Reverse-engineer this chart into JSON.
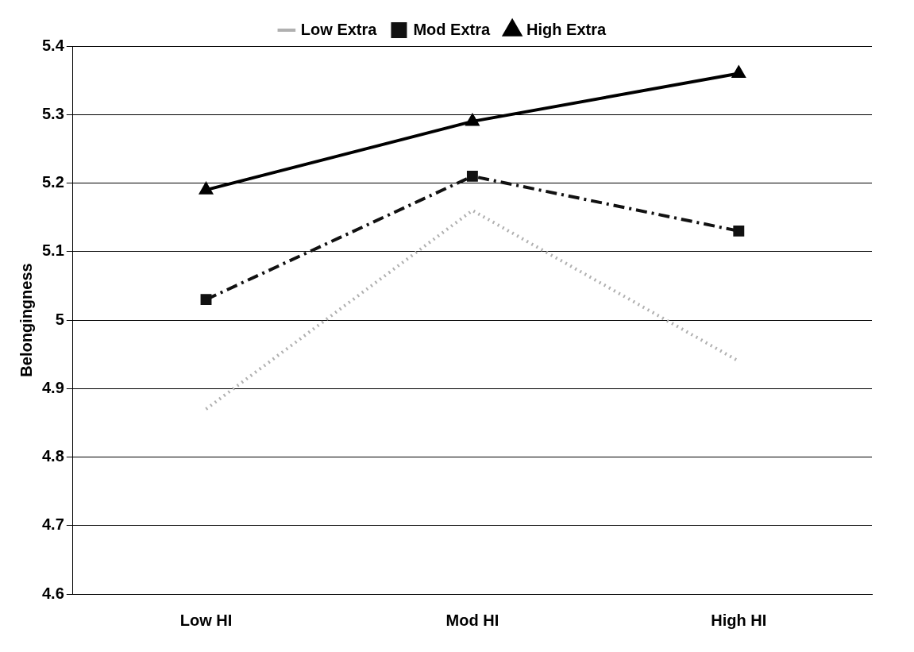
{
  "chart_data": {
    "type": "line",
    "ylabel": "Belongingness",
    "categories": [
      "Low HI",
      "Mod HI",
      "High HI"
    ],
    "series": [
      {
        "name": "Low Extra",
        "color": "#b0b0b0",
        "values": [
          4.87,
          5.16,
          4.94
        ],
        "line_style": "dotted",
        "marker": "none"
      },
      {
        "name": "Mod Extra",
        "color": "#111111",
        "values": [
          5.03,
          5.21,
          5.13
        ],
        "line_style": "dashed",
        "marker": "square"
      },
      {
        "name": "High Extra",
        "color": "#000000",
        "values": [
          5.19,
          5.29,
          5.36
        ],
        "line_style": "solid",
        "marker": "triangle"
      }
    ],
    "ylim": [
      4.6,
      5.4
    ],
    "yticks": [
      4.6,
      4.7,
      4.8,
      4.9,
      5,
      5.1,
      5.2,
      5.3,
      5.4
    ],
    "grid": "y",
    "legend": "top"
  }
}
